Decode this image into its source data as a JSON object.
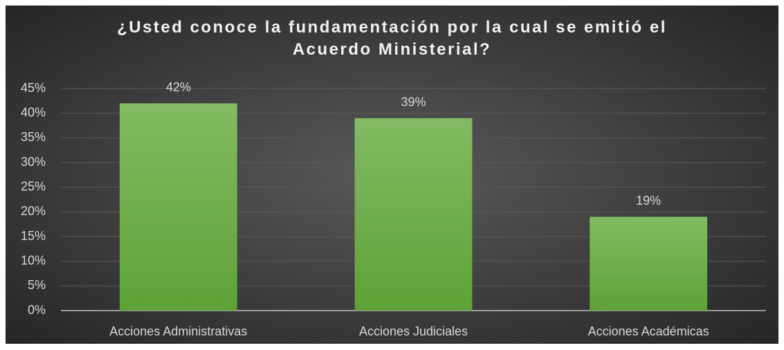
{
  "chart_data": {
    "type": "bar",
    "title": "¿Usted conoce la fundamentación por la cual se emitió el Acuerdo Ministerial?",
    "categories": [
      "Acciones Administrativas",
      "Acciones Judiciales",
      "Acciones Académicas"
    ],
    "values": [
      42,
      39,
      19
    ],
    "value_labels": [
      "42%",
      "39%",
      "19%"
    ],
    "color": "#6aac45",
    "ylim": [
      0,
      45
    ],
    "yticks": [
      {
        "value": 0,
        "label": "0%"
      },
      {
        "value": 5,
        "label": "5%"
      },
      {
        "value": 10,
        "label": "10%"
      },
      {
        "value": 15,
        "label": "15%"
      },
      {
        "value": 20,
        "label": "20%"
      },
      {
        "value": 25,
        "label": "25%"
      },
      {
        "value": 30,
        "label": "30%"
      },
      {
        "value": 35,
        "label": "35%"
      },
      {
        "value": 40,
        "label": "40%"
      },
      {
        "value": 45,
        "label": "45%"
      }
    ],
    "grid": true
  }
}
